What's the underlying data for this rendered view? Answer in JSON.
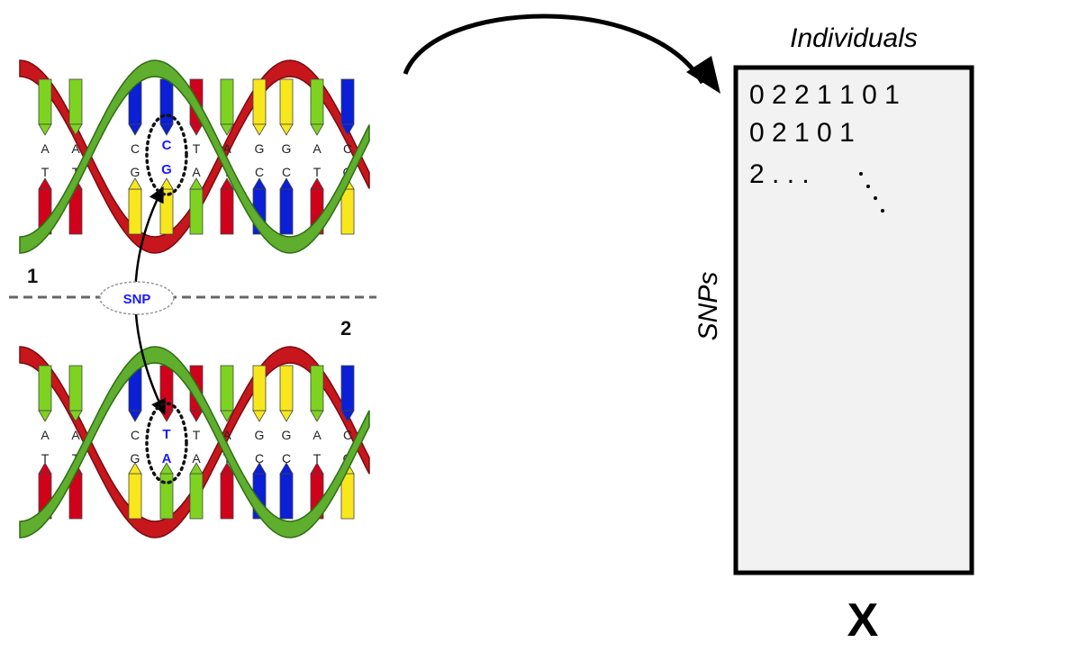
{
  "dna": {
    "strand1_label": "1",
    "strand2_label": "2",
    "snp_label": "SNP",
    "top_pairs": [
      {
        "top": "A",
        "bottom": "T",
        "top_color": "#7ed321",
        "bottom_color": "#d0021b"
      },
      {
        "top": "A",
        "bottom": "T",
        "top_color": "#7ed321",
        "bottom_color": "#d0021b"
      },
      {
        "top": "C",
        "bottom": "G",
        "top_color": "#0a1fd6",
        "bottom_color": "#f8e71c"
      },
      {
        "top": "C",
        "bottom": "G",
        "top_color": "#0a1fd6",
        "bottom_color": "#f8e71c"
      },
      {
        "top": "T",
        "bottom": "A",
        "top_color": "#d0021b",
        "bottom_color": "#7ed321"
      },
      {
        "top": "A",
        "bottom": "T",
        "top_color": "#7ed321",
        "bottom_color": "#d0021b"
      },
      {
        "top": "G",
        "bottom": "C",
        "top_color": "#f8e71c",
        "bottom_color": "#0a1fd6"
      },
      {
        "top": "G",
        "bottom": "C",
        "top_color": "#f8e71c",
        "bottom_color": "#0a1fd6"
      },
      {
        "top": "A",
        "bottom": "T",
        "top_color": "#7ed321",
        "bottom_color": "#d0021b"
      },
      {
        "top": "C",
        "bottom": "G",
        "top_color": "#0a1fd6",
        "bottom_color": "#f8e71c"
      }
    ],
    "bottom_pairs": [
      {
        "top": "A",
        "bottom": "T",
        "top_color": "#7ed321",
        "bottom_color": "#d0021b"
      },
      {
        "top": "A",
        "bottom": "T",
        "top_color": "#7ed321",
        "bottom_color": "#d0021b"
      },
      {
        "top": "C",
        "bottom": "G",
        "top_color": "#0a1fd6",
        "bottom_color": "#f8e71c"
      },
      {
        "top": "T",
        "bottom": "A",
        "top_color": "#d0021b",
        "bottom_color": "#7ed321"
      },
      {
        "top": "T",
        "bottom": "A",
        "top_color": "#d0021b",
        "bottom_color": "#7ed321"
      },
      {
        "top": "A",
        "bottom": "T",
        "top_color": "#7ed321",
        "bottom_color": "#d0021b"
      },
      {
        "top": "G",
        "bottom": "C",
        "top_color": "#f8e71c",
        "bottom_color": "#0a1fd6"
      },
      {
        "top": "G",
        "bottom": "C",
        "top_color": "#f8e71c",
        "bottom_color": "#0a1fd6"
      },
      {
        "top": "A",
        "bottom": "T",
        "top_color": "#7ed321",
        "bottom_color": "#d0021b"
      },
      {
        "top": "C",
        "bottom": "G",
        "top_color": "#0a1fd6",
        "bottom_color": "#f8e71c"
      }
    ],
    "snp_top_pair": {
      "top": "C",
      "bottom": "G"
    },
    "snp_bottom_pair": {
      "top": "T",
      "bottom": "A"
    },
    "colors": {
      "strand_green": "#5fae2e",
      "strand_green_dark": "#2f6d14",
      "strand_red": "#c8161d",
      "strand_red_dark": "#7a0b0f",
      "snp_text": "#1a1aff"
    }
  },
  "matrix": {
    "title": "Individuals",
    "row_axis_label": "SNPs",
    "matrix_label": "X",
    "row1": "0 2 2 1 1 0 1",
    "row2": "0 2 1 0 1",
    "row3": "2 . . .",
    "fill": "#f2f2f2"
  }
}
